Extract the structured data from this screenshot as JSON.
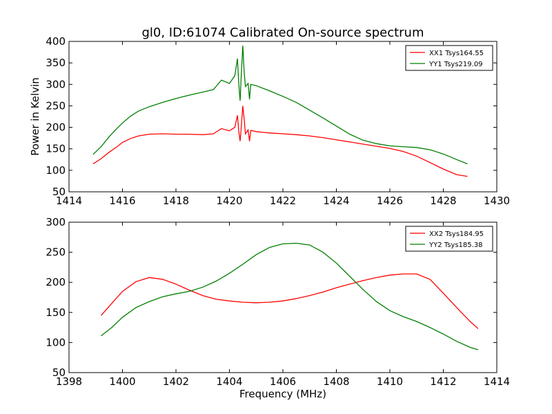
{
  "figure": {
    "title": "gl0, ID:61074 Calibrated On-source spectrum",
    "ylabel": "Power in Kelvin",
    "xlabel": "Frequency (MHz)"
  },
  "chart_data": [
    {
      "type": "line",
      "title": "gl0, ID:61074 Calibrated On-source spectrum",
      "xlabel": "",
      "ylabel": "Power in Kelvin",
      "xlim": [
        1414,
        1430
      ],
      "ylim": [
        50,
        400
      ],
      "xticks": [
        1414,
        1416,
        1418,
        1420,
        1422,
        1424,
        1426,
        1428,
        1430
      ],
      "yticks": [
        50,
        100,
        150,
        200,
        250,
        300,
        350,
        400
      ],
      "grid": false,
      "legend_position": "top-right",
      "series": [
        {
          "name": "XX1 Tsys164.55",
          "color": "#ff0000",
          "x": [
            1414.9,
            1415.2,
            1415.5,
            1415.8,
            1416.0,
            1416.3,
            1416.6,
            1417.0,
            1417.5,
            1418.0,
            1418.5,
            1419.0,
            1419.4,
            1419.7,
            1420.0,
            1420.2,
            1420.3,
            1420.35,
            1420.4,
            1420.45,
            1420.5,
            1420.55,
            1420.6,
            1420.7,
            1420.75,
            1420.8,
            1421.0,
            1421.5,
            1422.0,
            1422.5,
            1423.0,
            1423.5,
            1424.0,
            1424.5,
            1425.0,
            1425.5,
            1426.0,
            1426.5,
            1427.0,
            1427.5,
            1428.0,
            1428.5,
            1428.9
          ],
          "values": [
            115,
            127,
            142,
            155,
            165,
            174,
            180,
            184,
            185,
            184,
            184,
            183,
            185,
            197,
            192,
            200,
            228,
            190,
            168,
            205,
            250,
            220,
            185,
            194,
            168,
            193,
            190,
            187,
            185,
            183,
            180,
            176,
            171,
            166,
            161,
            156,
            151,
            144,
            133,
            118,
            103,
            90,
            86
          ]
        },
        {
          "name": "YY1 Tsys219.09",
          "color": "#007f00",
          "x": [
            1414.9,
            1415.2,
            1415.5,
            1415.8,
            1416.0,
            1416.3,
            1416.6,
            1417.0,
            1417.5,
            1418.0,
            1418.5,
            1419.0,
            1419.4,
            1419.7,
            1420.0,
            1420.2,
            1420.3,
            1420.35,
            1420.4,
            1420.45,
            1420.5,
            1420.55,
            1420.6,
            1420.7,
            1420.75,
            1420.8,
            1421.0,
            1421.5,
            1422.0,
            1422.5,
            1423.0,
            1423.5,
            1424.0,
            1424.5,
            1425.0,
            1425.5,
            1426.0,
            1426.5,
            1427.0,
            1427.5,
            1428.0,
            1428.5,
            1428.9
          ],
          "values": [
            137,
            155,
            178,
            198,
            210,
            226,
            238,
            248,
            258,
            267,
            275,
            282,
            288,
            310,
            302,
            320,
            360,
            300,
            262,
            330,
            390,
            330,
            295,
            302,
            265,
            300,
            297,
            285,
            272,
            258,
            240,
            222,
            203,
            184,
            170,
            162,
            157,
            155,
            153,
            148,
            138,
            125,
            115
          ]
        }
      ]
    },
    {
      "type": "line",
      "title": "",
      "xlabel": "Frequency (MHz)",
      "ylabel": "",
      "xlim": [
        1398,
        1414
      ],
      "ylim": [
        50,
        300
      ],
      "xticks": [
        1398,
        1400,
        1402,
        1404,
        1406,
        1408,
        1410,
        1412,
        1414
      ],
      "yticks": [
        50,
        100,
        150,
        200,
        250,
        300
      ],
      "grid": false,
      "legend_position": "top-right",
      "series": [
        {
          "name": "XX2 Tsys184.95",
          "color": "#ff0000",
          "x": [
            1399.2,
            1399.6,
            1400.0,
            1400.5,
            1401.0,
            1401.5,
            1402.0,
            1402.5,
            1403.0,
            1403.5,
            1404.0,
            1404.5,
            1405.0,
            1405.5,
            1406.0,
            1406.5,
            1407.0,
            1407.5,
            1408.0,
            1408.5,
            1409.0,
            1409.5,
            1410.0,
            1410.5,
            1411.0,
            1411.5,
            1412.0,
            1412.5,
            1413.0,
            1413.3
          ],
          "values": [
            145,
            165,
            185,
            201,
            208,
            205,
            197,
            187,
            178,
            172,
            169,
            167,
            166,
            167,
            169,
            173,
            178,
            184,
            191,
            197,
            203,
            208,
            212,
            214,
            214,
            205,
            182,
            158,
            135,
            123
          ]
        },
        {
          "name": "YY2 Tsys185.38",
          "color": "#007f00",
          "x": [
            1399.2,
            1399.6,
            1400.0,
            1400.5,
            1401.0,
            1401.5,
            1402.0,
            1402.5,
            1403.0,
            1403.5,
            1404.0,
            1404.5,
            1405.0,
            1405.5,
            1406.0,
            1406.5,
            1407.0,
            1407.5,
            1408.0,
            1408.5,
            1409.0,
            1409.5,
            1410.0,
            1410.5,
            1411.0,
            1411.5,
            1412.0,
            1412.5,
            1413.0,
            1413.3
          ],
          "values": [
            111,
            125,
            142,
            158,
            168,
            176,
            181,
            185,
            192,
            202,
            215,
            230,
            246,
            258,
            264,
            265,
            262,
            250,
            232,
            210,
            188,
            168,
            153,
            143,
            135,
            125,
            114,
            102,
            92,
            88
          ]
        }
      ]
    }
  ]
}
